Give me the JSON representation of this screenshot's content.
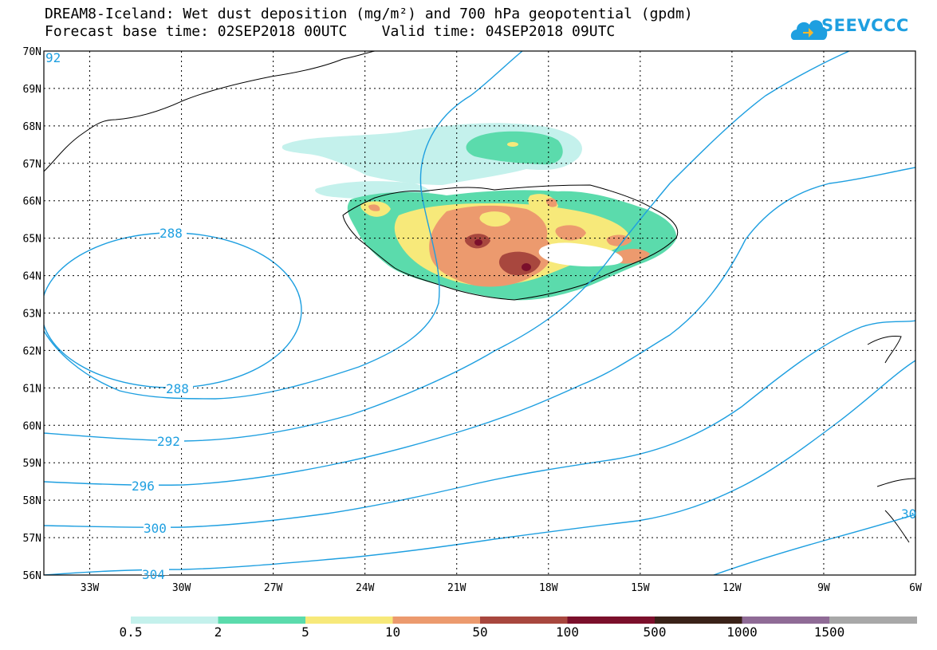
{
  "title": {
    "line1": "DREAM8-Iceland: Wet dust deposition (mg/m²) and 700 hPa geopotential (gpdm)",
    "line2": "Forecast base time: 02SEP2018 00UTC    Valid time: 04SEP2018 09UTC"
  },
  "logo": {
    "text": "SEEVCCC",
    "icon": "cloud-icon",
    "color": "#1e9fe0"
  },
  "map": {
    "lat_labels": [
      "70N",
      "69N",
      "68N",
      "67N",
      "66N",
      "65N",
      "64N",
      "63N",
      "62N",
      "61N",
      "60N",
      "59N",
      "58N",
      "57N",
      "56N"
    ],
    "lon_labels": [
      "33W",
      "30W",
      "27W",
      "24W",
      "21W",
      "18W",
      "15W",
      "12W",
      "9W",
      "6W"
    ],
    "lat_range": [
      56,
      70
    ],
    "lon_range": [
      -34.5,
      -6
    ],
    "grid": true,
    "contour_color": "#1e9fe0",
    "contour_labels": [
      {
        "id": "c292a",
        "text": "92"
      },
      {
        "id": "c288a",
        "text": "288"
      },
      {
        "id": "c288b",
        "text": "288"
      },
      {
        "id": "c292b",
        "text": "292"
      },
      {
        "id": "c296",
        "text": "296"
      },
      {
        "id": "c300",
        "text": "300"
      },
      {
        "id": "c304",
        "text": "304"
      },
      {
        "id": "c30",
        "text": "30"
      }
    ]
  },
  "colorbar": {
    "labels": [
      "0.5",
      "2",
      "5",
      "10",
      "50",
      "100",
      "500",
      "1000",
      "1500"
    ],
    "colors": [
      "#c4f1ec",
      "#5bdbac",
      "#f7e97a",
      "#ec9a6e",
      "#a8473e",
      "#7b0f2b",
      "#3a2218",
      "#8f6b96",
      "#a8a8a8"
    ]
  }
}
